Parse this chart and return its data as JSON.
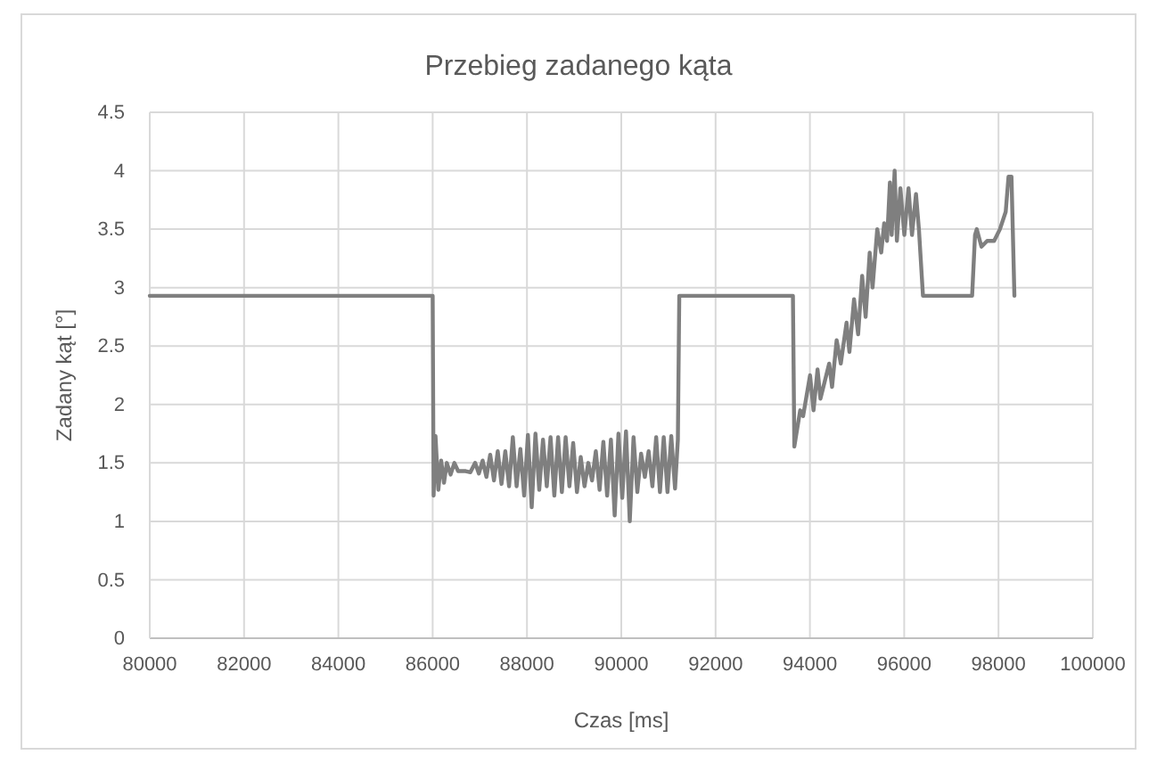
{
  "chart_data": {
    "type": "line",
    "title": "Przebieg zadanego kąta",
    "xlabel": "Czas [ms]",
    "ylabel": "Zadany kąt [°]",
    "xlim": [
      80000,
      100000
    ],
    "xticks": [
      80000,
      82000,
      84000,
      86000,
      88000,
      90000,
      92000,
      94000,
      96000,
      98000,
      100000
    ],
    "ylim": [
      0,
      4.5
    ],
    "yticks": [
      0,
      0.5,
      1,
      1.5,
      2,
      2.5,
      3,
      3.5,
      4,
      4.5
    ],
    "grid": true,
    "marker": "none",
    "line_style": "solid",
    "series": [
      {
        "color": "#7f7f7f",
        "x": [
          80000,
          86000,
          86020,
          86060,
          86120,
          86180,
          86240,
          86300,
          86380,
          86460,
          86540,
          86700,
          86800,
          86900,
          86980,
          87060,
          87140,
          87220,
          87300,
          87380,
          87460,
          87540,
          87620,
          87700,
          87780,
          87860,
          87940,
          88020,
          88100,
          88180,
          88260,
          88340,
          88420,
          88500,
          88580,
          88660,
          88740,
          88820,
          88900,
          88980,
          89060,
          89140,
          89220,
          89300,
          89380,
          89460,
          89540,
          89620,
          89700,
          89780,
          89860,
          89940,
          90020,
          90100,
          90180,
          90260,
          90340,
          90420,
          90500,
          90580,
          90660,
          90740,
          90820,
          90900,
          90980,
          91060,
          91140,
          91200,
          91230,
          93640,
          93670,
          93794,
          93856,
          94003,
          94077,
          94162,
          94224,
          94409,
          94470,
          94567,
          94655,
          94777,
          94838,
          94936,
          95023,
          95108,
          95182,
          95268,
          95329,
          95428,
          95513,
          95575,
          95636,
          95697,
          95734,
          95797,
          95845,
          95919,
          96003,
          96091,
          96165,
          96250,
          96312,
          96398,
          97440,
          97502,
          97539,
          97638,
          97760,
          97907,
          98030,
          98153,
          98212,
          98275,
          98337
        ],
        "values": [
          2.93,
          2.93,
          1.22,
          1.73,
          1.27,
          1.52,
          1.33,
          1.5,
          1.4,
          1.5,
          1.43,
          1.43,
          1.42,
          1.5,
          1.41,
          1.52,
          1.38,
          1.57,
          1.35,
          1.6,
          1.32,
          1.6,
          1.3,
          1.72,
          1.3,
          1.62,
          1.22,
          1.74,
          1.12,
          1.75,
          1.27,
          1.7,
          1.3,
          1.72,
          1.22,
          1.72,
          1.25,
          1.72,
          1.3,
          1.67,
          1.25,
          1.55,
          1.3,
          1.5,
          1.35,
          1.6,
          1.27,
          1.68,
          1.22,
          1.7,
          1.05,
          1.75,
          1.2,
          1.77,
          1.0,
          1.72,
          1.25,
          1.58,
          1.38,
          1.6,
          1.3,
          1.72,
          1.25,
          1.72,
          1.25,
          1.73,
          1.28,
          1.7,
          2.93,
          2.93,
          1.64,
          1.95,
          1.9,
          2.25,
          1.95,
          2.3,
          2.05,
          2.35,
          2.15,
          2.55,
          2.35,
          2.7,
          2.45,
          2.9,
          2.6,
          3.1,
          2.75,
          3.3,
          3.0,
          3.5,
          3.3,
          3.55,
          3.4,
          3.9,
          3.45,
          4.0,
          3.4,
          3.85,
          3.45,
          3.85,
          3.45,
          3.8,
          3.5,
          2.93,
          2.93,
          3.45,
          3.5,
          3.35,
          3.4,
          3.4,
          3.5,
          3.65,
          3.95,
          3.95,
          2.93
        ]
      }
    ]
  }
}
